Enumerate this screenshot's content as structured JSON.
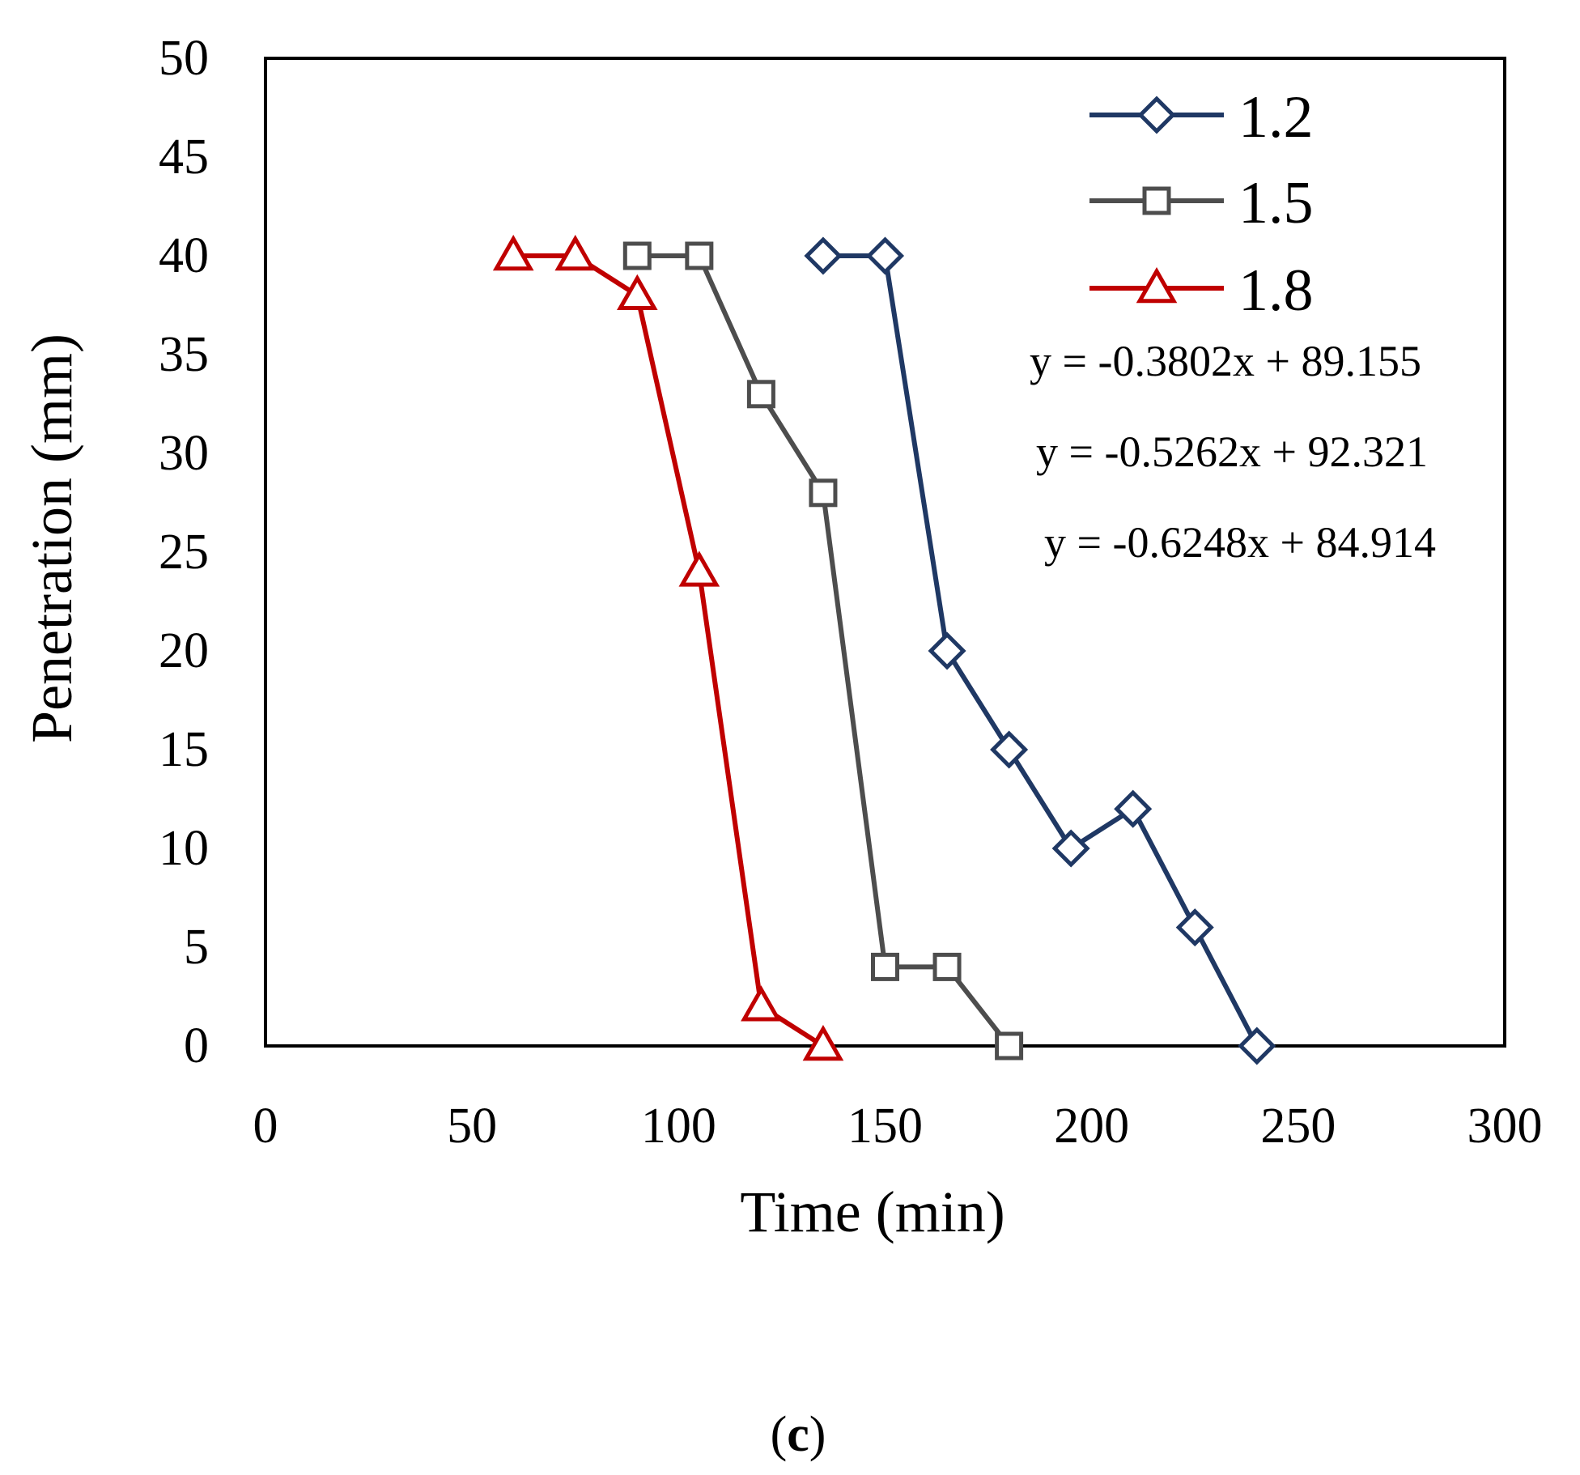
{
  "chart_data": {
    "type": "line",
    "title": "",
    "xlabel": "Time (min)",
    "ylabel": "Penetration (mm)",
    "xlim": [
      0,
      300
    ],
    "ylim": [
      0,
      50
    ],
    "xticks": [
      0,
      50,
      100,
      150,
      200,
      250,
      300
    ],
    "yticks": [
      0,
      5,
      10,
      15,
      20,
      25,
      30,
      35,
      40,
      45,
      50
    ],
    "grid": false,
    "legend_position": "top-right",
    "series": [
      {
        "name": "1.2",
        "color": "#1f3864",
        "marker": "diamond",
        "x": [
          135,
          150,
          165,
          180,
          195,
          210,
          225,
          240
        ],
        "y": [
          40,
          40,
          20,
          15,
          10,
          12,
          6,
          0
        ]
      },
      {
        "name": "1.5",
        "color": "#4d4d4d",
        "marker": "square",
        "x": [
          90,
          105,
          120,
          135,
          150,
          165,
          180
        ],
        "y": [
          40,
          40,
          33,
          28,
          4,
          4,
          0
        ]
      },
      {
        "name": "1.8",
        "color": "#c00000",
        "marker": "triangle",
        "x": [
          60,
          75,
          90,
          105,
          120,
          135
        ],
        "y": [
          40,
          40,
          38,
          24,
          2,
          0
        ]
      }
    ],
    "annotations": [
      "y = -0.3802x + 89.155",
      "y = -0.5262x + 92.321",
      "y = -0.6248x + 84.914"
    ]
  },
  "caption": {
    "open": "(",
    "letter": "c",
    "close": ")"
  }
}
